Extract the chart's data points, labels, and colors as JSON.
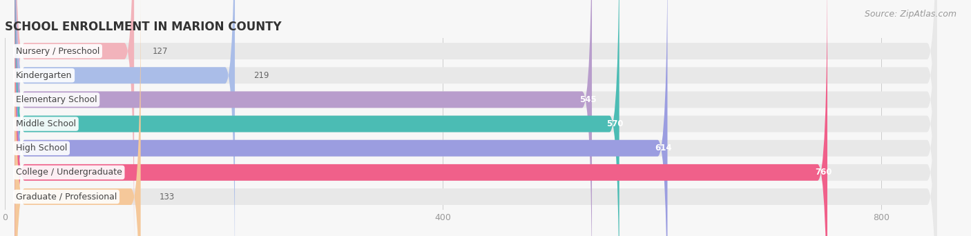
{
  "title": "SCHOOL ENROLLMENT IN MARION COUNTY",
  "source": "Source: ZipAtlas.com",
  "categories": [
    "Nursery / Preschool",
    "Kindergarten",
    "Elementary School",
    "Middle School",
    "High School",
    "College / Undergraduate",
    "Graduate / Professional"
  ],
  "values": [
    127,
    219,
    545,
    570,
    614,
    760,
    133
  ],
  "bar_colors": [
    "#f2b3bb",
    "#aabde8",
    "#b89dcc",
    "#4bbcb4",
    "#9b9de0",
    "#f0608a",
    "#f5c89a"
  ],
  "bar_bg_color": "#e8e8e8",
  "xlim_max": 860,
  "xticks": [
    0,
    400,
    800
  ],
  "background_color": "#f7f7f7",
  "title_fontsize": 12,
  "label_fontsize": 9,
  "value_fontsize": 8.5,
  "source_fontsize": 9,
  "bar_height": 0.68,
  "bar_gap": 1.0,
  "value_threshold": 400
}
